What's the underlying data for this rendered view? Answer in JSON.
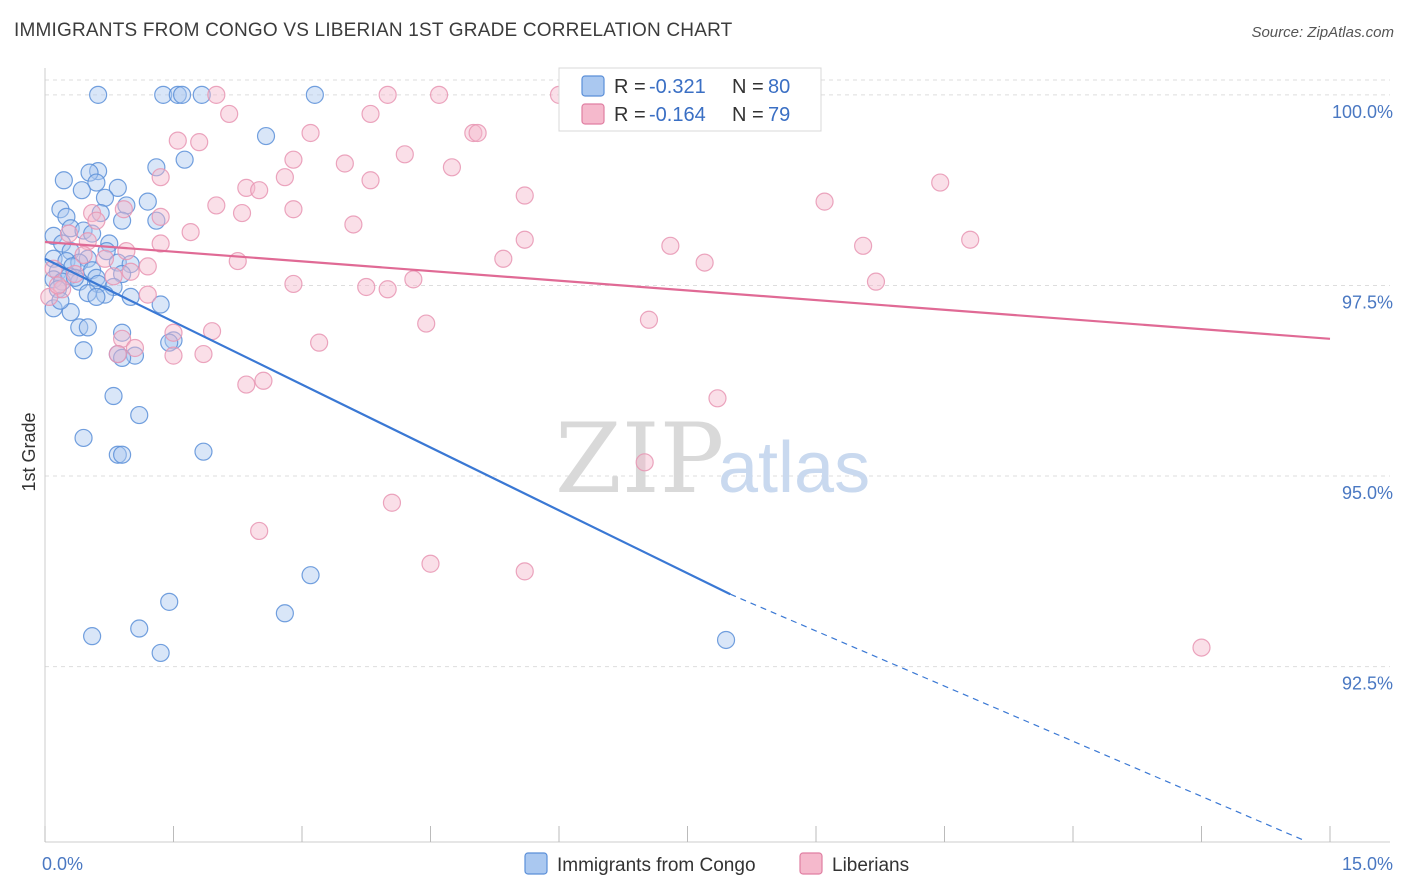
{
  "title": "IMMIGRANTS FROM CONGO VS LIBERIAN 1ST GRADE CORRELATION CHART",
  "source": "Source: ZipAtlas.com",
  "colors": {
    "blue": "#3a78d4",
    "blue_fill": "#aac8f0",
    "pink": "#e06a95",
    "pink_fill": "#f5b9cc",
    "grid": "#dddddd",
    "axis_text": "#4a78c2"
  },
  "legend": {
    "series": [
      {
        "r_label": "R =",
        "r_value": "-0.321",
        "n_label": "N =",
        "n_value": "80"
      },
      {
        "r_label": "R =",
        "r_value": "-0.164",
        "n_label": "N =",
        "n_value": "79"
      }
    ]
  },
  "bottom_legend": [
    "Immigrants from Congo",
    "Liberians"
  ],
  "watermark": {
    "zip": "ZIP",
    "atlas": "atlas"
  },
  "chart_data": {
    "type": "scatter",
    "xlabel": "",
    "ylabel": "1st Grade",
    "xlim": [
      0,
      15
    ],
    "ylim": [
      90.2,
      100.3
    ],
    "x_tick_labels": [
      "0.0%",
      "15.0%"
    ],
    "y_ticks": [
      100.0,
      97.5,
      95.0,
      92.5
    ],
    "y_tick_labels": [
      "100.0%",
      "97.5%",
      "95.0%",
      "92.5%"
    ],
    "grid": "horizontal dashed",
    "series": [
      {
        "name": "Immigrants from Congo",
        "color": "#3a78d4",
        "trend": {
          "x0": 0.0,
          "y0": 97.85,
          "x1": 8.0,
          "y1": 93.45,
          "dash_to_x": 14.7,
          "dash_to_y": 90.22
        },
        "points": [
          [
            0.62,
            100.0
          ],
          [
            1.38,
            100.0
          ],
          [
            1.55,
            100.0
          ],
          [
            1.83,
            100.0
          ],
          [
            3.15,
            100.0
          ],
          [
            2.58,
            99.46
          ],
          [
            1.63,
            99.15
          ],
          [
            1.3,
            99.05
          ],
          [
            0.62,
            99.0
          ],
          [
            0.52,
            98.98
          ],
          [
            0.22,
            98.88
          ],
          [
            0.6,
            98.85
          ],
          [
            0.85,
            98.78
          ],
          [
            0.43,
            98.75
          ],
          [
            0.7,
            98.65
          ],
          [
            1.2,
            98.6
          ],
          [
            0.95,
            98.55
          ],
          [
            0.18,
            98.5
          ],
          [
            0.25,
            98.4
          ],
          [
            0.9,
            98.35
          ],
          [
            1.3,
            98.35
          ],
          [
            0.3,
            98.25
          ],
          [
            0.45,
            98.22
          ],
          [
            0.55,
            98.18
          ],
          [
            0.1,
            98.15
          ],
          [
            0.2,
            98.05
          ],
          [
            0.75,
            98.05
          ],
          [
            0.3,
            97.95
          ],
          [
            0.72,
            97.95
          ],
          [
            0.5,
            97.85
          ],
          [
            0.1,
            97.85
          ],
          [
            0.25,
            97.82
          ],
          [
            0.4,
            97.8
          ],
          [
            0.85,
            97.8
          ],
          [
            1.0,
            97.78
          ],
          [
            0.32,
            97.75
          ],
          [
            0.55,
            97.7
          ],
          [
            0.15,
            97.68
          ],
          [
            0.9,
            97.65
          ],
          [
            0.28,
            97.62
          ],
          [
            0.6,
            97.6
          ],
          [
            0.1,
            97.58
          ],
          [
            0.2,
            97.55
          ],
          [
            0.4,
            97.55
          ],
          [
            0.62,
            97.52
          ],
          [
            0.8,
            97.48
          ],
          [
            0.15,
            97.45
          ],
          [
            0.5,
            97.4
          ],
          [
            0.7,
            97.38
          ],
          [
            0.6,
            97.35
          ],
          [
            1.0,
            97.35
          ],
          [
            1.35,
            97.25
          ],
          [
            0.1,
            97.2
          ],
          [
            0.3,
            97.15
          ],
          [
            0.4,
            96.95
          ],
          [
            0.5,
            96.95
          ],
          [
            0.9,
            96.88
          ],
          [
            1.5,
            96.78
          ],
          [
            0.45,
            96.65
          ],
          [
            0.85,
            96.6
          ],
          [
            1.05,
            96.58
          ],
          [
            0.9,
            96.55
          ],
          [
            1.45,
            96.75
          ],
          [
            0.8,
            96.05
          ],
          [
            1.1,
            95.8
          ],
          [
            0.45,
            95.5
          ],
          [
            0.85,
            95.28
          ],
          [
            0.9,
            95.28
          ],
          [
            1.85,
            95.32
          ],
          [
            3.1,
            93.7
          ],
          [
            1.45,
            93.35
          ],
          [
            2.8,
            93.2
          ],
          [
            1.1,
            93.0
          ],
          [
            0.55,
            92.9
          ],
          [
            1.35,
            92.68
          ],
          [
            7.95,
            92.85
          ],
          [
            1.6,
            100.0
          ],
          [
            0.35,
            97.6
          ],
          [
            0.18,
            97.3
          ],
          [
            0.65,
            98.45
          ]
        ]
      },
      {
        "name": "Liberians",
        "color": "#e06a95",
        "trend": {
          "x0": 0.0,
          "y0": 98.07,
          "x1": 15.0,
          "y1": 96.8
        },
        "points": [
          [
            2.0,
            100.0
          ],
          [
            4.0,
            100.0
          ],
          [
            4.6,
            100.0
          ],
          [
            6.15,
            100.0
          ],
          [
            2.15,
            99.75
          ],
          [
            3.8,
            99.75
          ],
          [
            5.0,
            99.5
          ],
          [
            5.05,
            99.5
          ],
          [
            3.1,
            99.5
          ],
          [
            1.55,
            99.4
          ],
          [
            1.8,
            99.38
          ],
          [
            4.2,
            99.22
          ],
          [
            2.9,
            99.15
          ],
          [
            3.5,
            99.1
          ],
          [
            4.75,
            99.05
          ],
          [
            1.35,
            98.92
          ],
          [
            2.8,
            98.92
          ],
          [
            3.8,
            98.88
          ],
          [
            2.35,
            98.78
          ],
          [
            2.5,
            98.75
          ],
          [
            10.45,
            98.85
          ],
          [
            5.6,
            98.68
          ],
          [
            2.0,
            98.55
          ],
          [
            2.9,
            98.5
          ],
          [
            9.1,
            98.6
          ],
          [
            1.35,
            98.4
          ],
          [
            2.3,
            98.45
          ],
          [
            0.55,
            98.45
          ],
          [
            0.92,
            98.5
          ],
          [
            0.6,
            98.35
          ],
          [
            3.6,
            98.3
          ],
          [
            0.28,
            98.18
          ],
          [
            1.7,
            98.2
          ],
          [
            0.5,
            98.08
          ],
          [
            1.35,
            98.05
          ],
          [
            5.6,
            98.1
          ],
          [
            10.8,
            98.1
          ],
          [
            7.3,
            98.02
          ],
          [
            9.55,
            98.02
          ],
          [
            0.95,
            97.95
          ],
          [
            0.45,
            97.9
          ],
          [
            5.35,
            97.85
          ],
          [
            0.7,
            97.85
          ],
          [
            2.25,
            97.82
          ],
          [
            7.7,
            97.8
          ],
          [
            1.2,
            97.75
          ],
          [
            0.1,
            97.72
          ],
          [
            1.0,
            97.68
          ],
          [
            0.35,
            97.65
          ],
          [
            0.8,
            97.62
          ],
          [
            4.3,
            97.58
          ],
          [
            9.7,
            97.55
          ],
          [
            2.9,
            97.52
          ],
          [
            3.75,
            97.48
          ],
          [
            4.0,
            97.45
          ],
          [
            0.2,
            97.45
          ],
          [
            1.2,
            97.38
          ],
          [
            0.05,
            97.35
          ],
          [
            7.05,
            97.05
          ],
          [
            4.45,
            97.0
          ],
          [
            1.95,
            96.9
          ],
          [
            1.5,
            96.88
          ],
          [
            0.9,
            96.8
          ],
          [
            3.2,
            96.75
          ],
          [
            1.05,
            96.68
          ],
          [
            0.85,
            96.6
          ],
          [
            1.5,
            96.58
          ],
          [
            1.85,
            96.6
          ],
          [
            2.55,
            96.25
          ],
          [
            2.35,
            96.2
          ],
          [
            7.85,
            96.02
          ],
          [
            7.0,
            95.18
          ],
          [
            4.05,
            94.65
          ],
          [
            2.5,
            94.28
          ],
          [
            4.5,
            93.85
          ],
          [
            5.6,
            93.75
          ],
          [
            13.5,
            92.75
          ],
          [
            0.15,
            97.5
          ],
          [
            6.0,
            100.0
          ]
        ]
      }
    ]
  }
}
